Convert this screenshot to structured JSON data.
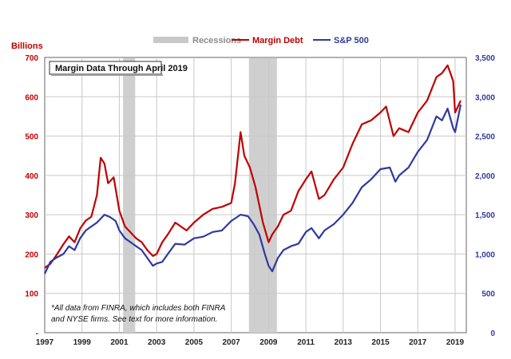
{
  "chart_data": {
    "type": "line",
    "title": "Margin Data Through April 2019",
    "left_axis_label": "Billions",
    "footnote_lines": [
      "*All data from FINRA, which includes both FINRA",
      "and NYSE firms. See text for more information."
    ],
    "legend": [
      {
        "name": "Recessions",
        "color": "#c8c8c8"
      },
      {
        "name": "Margin Debt",
        "color": "#c00000"
      },
      {
        "name": "S&P 500",
        "color": "#2e3a9e"
      }
    ],
    "x_range": [
      1997,
      2019.6
    ],
    "x_ticks": [
      "1997",
      "1999",
      "2001",
      "2003",
      "2005",
      "2007",
      "2009",
      "2011",
      "2013",
      "2015",
      "2017",
      "2019"
    ],
    "left_range": [
      0,
      700
    ],
    "left_ticks": [
      "-",
      "100",
      "200",
      "300",
      "400",
      "500",
      "600",
      "700"
    ],
    "right_range": [
      0,
      3500
    ],
    "right_ticks": [
      "0",
      "500",
      "1,000",
      "1,500",
      "2,000",
      "2,500",
      "3,000",
      "3,500"
    ],
    "recessions": [
      [
        2001.2,
        2001.85
      ],
      [
        2007.95,
        2009.45
      ]
    ],
    "series": [
      {
        "name": "Margin Debt",
        "axis": "left",
        "color": "#c00000",
        "x": [
          1997.0,
          1997.3,
          1997.6,
          1998.0,
          1998.3,
          1998.6,
          1998.9,
          1999.2,
          1999.5,
          1999.8,
          2000.0,
          2000.2,
          2000.4,
          2000.7,
          2001.0,
          2001.3,
          2001.6,
          2001.9,
          2002.2,
          2002.5,
          2002.8,
          2003.0,
          2003.3,
          2003.6,
          2004.0,
          2004.3,
          2004.6,
          2005.0,
          2005.5,
          2006.0,
          2006.5,
          2007.0,
          2007.2,
          2007.5,
          2007.7,
          2008.0,
          2008.3,
          2008.7,
          2009.0,
          2009.2,
          2009.5,
          2009.8,
          2010.2,
          2010.6,
          2011.0,
          2011.3,
          2011.7,
          2012.0,
          2012.5,
          2013.0,
          2013.5,
          2014.0,
          2014.5,
          2015.0,
          2015.3,
          2015.7,
          2016.0,
          2016.5,
          2017.0,
          2017.5,
          2018.0,
          2018.3,
          2018.6,
          2018.9,
          2019.0,
          2019.3
        ],
        "values": [
          165,
          175,
          195,
          225,
          245,
          230,
          265,
          285,
          295,
          350,
          445,
          430,
          380,
          395,
          310,
          270,
          255,
          240,
          230,
          210,
          195,
          200,
          230,
          250,
          280,
          270,
          260,
          280,
          300,
          315,
          320,
          330,
          380,
          510,
          450,
          420,
          370,
          280,
          230,
          250,
          270,
          300,
          310,
          360,
          390,
          410,
          340,
          350,
          390,
          420,
          480,
          530,
          540,
          560,
          575,
          500,
          520,
          510,
          560,
          590,
          650,
          660,
          680,
          640,
          560,
          590
        ]
      },
      {
        "name": "S&P 500",
        "axis": "right",
        "color": "#2e3a9e",
        "x": [
          1997.0,
          1997.3,
          1997.6,
          1998.0,
          1998.3,
          1998.6,
          1998.9,
          1999.2,
          1999.5,
          1999.8,
          2000.0,
          2000.2,
          2000.5,
          2000.8,
          2001.0,
          2001.3,
          2001.6,
          2001.9,
          2002.2,
          2002.5,
          2002.8,
          2003.0,
          2003.3,
          2003.6,
          2004.0,
          2004.5,
          2005.0,
          2005.5,
          2006.0,
          2006.5,
          2007.0,
          2007.5,
          2007.9,
          2008.2,
          2008.5,
          2008.8,
          2009.0,
          2009.2,
          2009.5,
          2009.8,
          2010.2,
          2010.6,
          2011.0,
          2011.3,
          2011.7,
          2012.0,
          2012.5,
          2013.0,
          2013.5,
          2014.0,
          2014.5,
          2015.0,
          2015.5,
          2015.8,
          2016.0,
          2016.5,
          2017.0,
          2017.5,
          2018.0,
          2018.3,
          2018.6,
          2018.9,
          2019.0,
          2019.3
        ],
        "values": [
          750,
          900,
          950,
          1000,
          1100,
          1050,
          1200,
          1300,
          1350,
          1400,
          1450,
          1500,
          1470,
          1420,
          1300,
          1200,
          1150,
          1100,
          1050,
          950,
          850,
          880,
          900,
          1000,
          1130,
          1120,
          1200,
          1220,
          1280,
          1300,
          1420,
          1500,
          1480,
          1380,
          1250,
          1000,
          850,
          780,
          950,
          1050,
          1100,
          1130,
          1280,
          1330,
          1200,
          1300,
          1380,
          1500,
          1650,
          1850,
          1950,
          2080,
          2100,
          1920,
          2000,
          2100,
          2300,
          2450,
          2750,
          2700,
          2850,
          2600,
          2550,
          2900
        ]
      }
    ]
  }
}
